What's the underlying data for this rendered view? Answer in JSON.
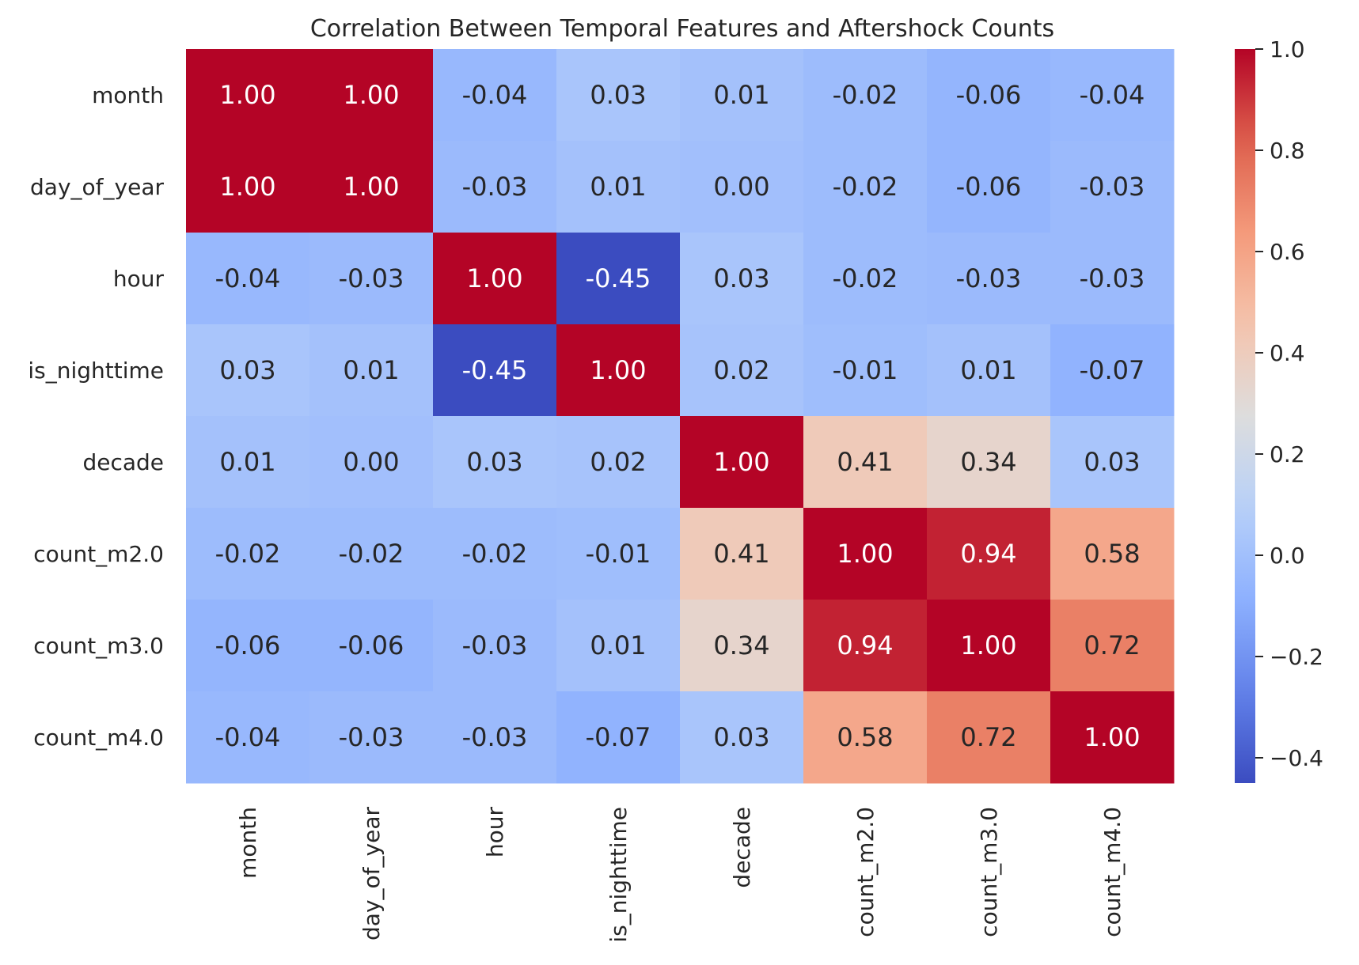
{
  "chart_data": {
    "type": "heatmap",
    "title": "Correlation Between Temporal Features and Aftershock Counts",
    "xlabel": "",
    "ylabel": "",
    "row_labels": [
      "month",
      "day_of_year",
      "hour",
      "is_nighttime",
      "decade",
      "count_m2.0",
      "count_m3.0",
      "count_m4.0"
    ],
    "col_labels": [
      "month",
      "day_of_year",
      "hour",
      "is_nighttime",
      "decade",
      "count_m2.0",
      "count_m3.0",
      "count_m4.0"
    ],
    "values": [
      [
        1.0,
        1.0,
        -0.04,
        0.03,
        0.01,
        -0.02,
        -0.06,
        -0.04
      ],
      [
        1.0,
        1.0,
        -0.03,
        0.01,
        -0.0,
        -0.02,
        -0.06,
        -0.03
      ],
      [
        -0.04,
        -0.03,
        1.0,
        -0.45,
        0.03,
        -0.02,
        -0.03,
        -0.03
      ],
      [
        0.03,
        0.01,
        -0.45,
        1.0,
        0.02,
        -0.01,
        0.01,
        -0.07
      ],
      [
        0.01,
        -0.0,
        0.03,
        0.02,
        1.0,
        0.41,
        0.34,
        0.03
      ],
      [
        -0.02,
        -0.02,
        -0.02,
        -0.01,
        0.41,
        1.0,
        0.94,
        0.58
      ],
      [
        -0.06,
        -0.06,
        -0.03,
        0.01,
        0.34,
        0.94,
        1.0,
        0.72
      ],
      [
        -0.04,
        -0.03,
        -0.03,
        -0.07,
        0.03,
        0.58,
        0.72,
        1.0
      ]
    ],
    "value_format": "2 decimals",
    "colormap": "coolwarm",
    "vmin": -0.45,
    "vmax": 1.0,
    "colorbar": {
      "ticks": [
        -0.4,
        -0.2,
        0.0,
        0.2,
        0.4,
        0.6,
        0.8,
        1.0
      ],
      "tick_labels": [
        "−0.4",
        "−0.2",
        "0.0",
        "0.2",
        "0.4",
        "0.6",
        "0.8",
        "1.0"
      ],
      "placement": "right"
    },
    "grid": false
  }
}
